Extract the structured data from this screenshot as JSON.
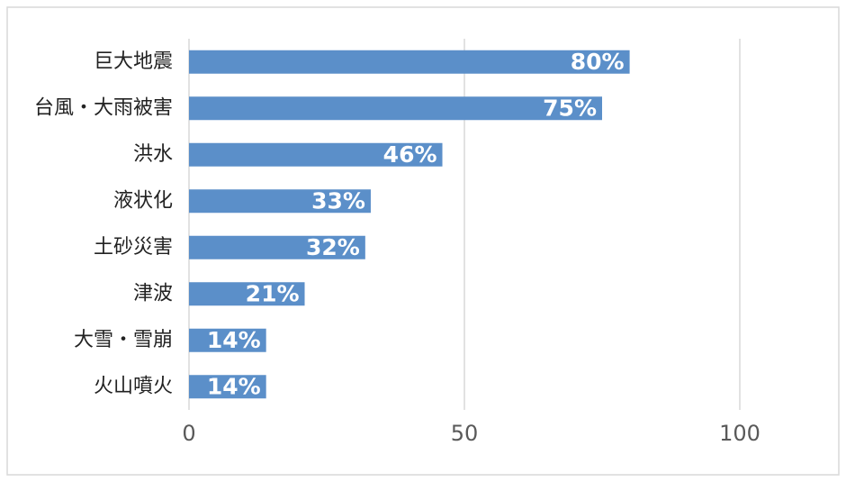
{
  "chart_data": {
    "type": "bar",
    "orientation": "horizontal",
    "categories": [
      "巨大地震",
      "台風・大雨被害",
      "洪水",
      "液状化",
      "土砂災害",
      "津波",
      "大雪・雪崩",
      "火山噴火"
    ],
    "values": [
      80,
      75,
      46,
      33,
      32,
      21,
      14,
      14
    ],
    "value_labels": [
      "80%",
      "75%",
      "46%",
      "33%",
      "32%",
      "21%",
      "14%",
      "14%"
    ],
    "color": "#5b8fc9",
    "xlim": [
      0,
      100
    ],
    "xticks": [
      0,
      50,
      100
    ],
    "grid": true
  }
}
